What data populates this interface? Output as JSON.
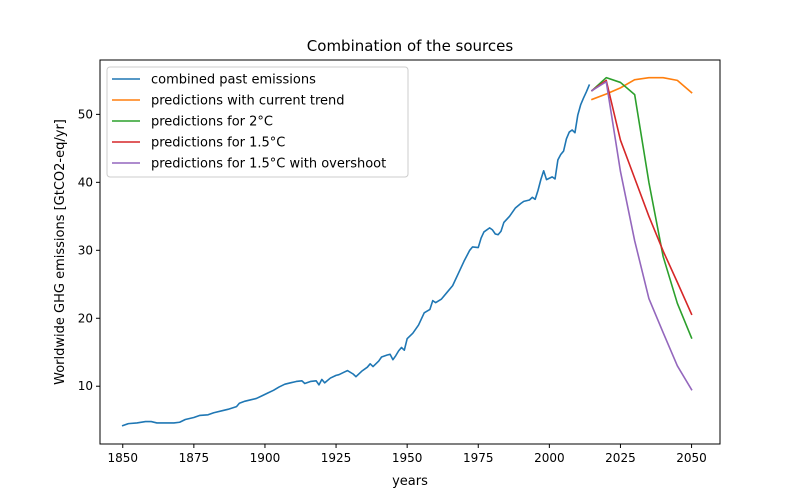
{
  "chart_data": {
    "type": "line",
    "title": "Combination of the sources",
    "xlabel": "years",
    "ylabel": "Worldwide GHG emissions [GtCO2-eq/yr]",
    "xlim": [
      1842,
      2060
    ],
    "ylim": [
      1.5,
      58
    ],
    "xticks": [
      1850,
      1875,
      1900,
      1925,
      1950,
      1975,
      2000,
      2025,
      2050
    ],
    "yticks": [
      10,
      20,
      30,
      40,
      50
    ],
    "grid": false,
    "legend_position": "top-left",
    "series": [
      {
        "name": "combined past emissions",
        "color": "#1f77b4",
        "points": [
          [
            1850,
            4.2
          ],
          [
            1852,
            4.5
          ],
          [
            1855,
            4.6
          ],
          [
            1858,
            4.8
          ],
          [
            1860,
            4.8
          ],
          [
            1862,
            4.6
          ],
          [
            1865,
            4.6
          ],
          [
            1868,
            4.6
          ],
          [
            1870,
            4.7
          ],
          [
            1872,
            5.1
          ],
          [
            1875,
            5.4
          ],
          [
            1877,
            5.7
          ],
          [
            1880,
            5.8
          ],
          [
            1882,
            6.1
          ],
          [
            1885,
            6.4
          ],
          [
            1887,
            6.6
          ],
          [
            1890,
            7.0
          ],
          [
            1891,
            7.5
          ],
          [
            1893,
            7.8
          ],
          [
            1895,
            8.0
          ],
          [
            1897,
            8.2
          ],
          [
            1899,
            8.6
          ],
          [
            1901,
            9.0
          ],
          [
            1903,
            9.4
          ],
          [
            1905,
            9.9
          ],
          [
            1907,
            10.3
          ],
          [
            1909,
            10.5
          ],
          [
            1911,
            10.7
          ],
          [
            1913,
            10.8
          ],
          [
            1914,
            10.4
          ],
          [
            1916,
            10.7
          ],
          [
            1918,
            10.8
          ],
          [
            1919,
            10.2
          ],
          [
            1920,
            11.0
          ],
          [
            1921,
            10.5
          ],
          [
            1923,
            11.2
          ],
          [
            1925,
            11.6
          ],
          [
            1926,
            11.7
          ],
          [
            1928,
            12.1
          ],
          [
            1929,
            12.3
          ],
          [
            1931,
            11.8
          ],
          [
            1932,
            11.4
          ],
          [
            1934,
            12.2
          ],
          [
            1936,
            12.8
          ],
          [
            1937,
            13.3
          ],
          [
            1938,
            12.9
          ],
          [
            1940,
            13.7
          ],
          [
            1941,
            14.3
          ],
          [
            1943,
            14.6
          ],
          [
            1944,
            14.7
          ],
          [
            1945,
            13.9
          ],
          [
            1946,
            14.5
          ],
          [
            1947,
            15.2
          ],
          [
            1948,
            15.7
          ],
          [
            1949,
            15.3
          ],
          [
            1950,
            17.0
          ],
          [
            1952,
            17.8
          ],
          [
            1954,
            19.0
          ],
          [
            1956,
            20.8
          ],
          [
            1958,
            21.3
          ],
          [
            1959,
            22.6
          ],
          [
            1960,
            22.3
          ],
          [
            1962,
            22.8
          ],
          [
            1964,
            23.8
          ],
          [
            1966,
            24.8
          ],
          [
            1968,
            26.6
          ],
          [
            1970,
            28.4
          ],
          [
            1972,
            30.0
          ],
          [
            1973,
            30.5
          ],
          [
            1975,
            30.4
          ],
          [
            1976,
            31.8
          ],
          [
            1977,
            32.7
          ],
          [
            1979,
            33.3
          ],
          [
            1980,
            33.0
          ],
          [
            1981,
            32.4
          ],
          [
            1982,
            32.3
          ],
          [
            1983,
            32.8
          ],
          [
            1984,
            34.1
          ],
          [
            1986,
            35.0
          ],
          [
            1988,
            36.2
          ],
          [
            1990,
            36.9
          ],
          [
            1991,
            37.2
          ],
          [
            1993,
            37.4
          ],
          [
            1994,
            37.8
          ],
          [
            1995,
            37.5
          ],
          [
            1996,
            38.8
          ],
          [
            1997,
            40.4
          ],
          [
            1998,
            41.7
          ],
          [
            1999,
            40.4
          ],
          [
            2000,
            40.6
          ],
          [
            2001,
            40.8
          ],
          [
            2002,
            40.5
          ],
          [
            2003,
            43.3
          ],
          [
            2004,
            44.1
          ],
          [
            2005,
            44.6
          ],
          [
            2006,
            46.4
          ],
          [
            2007,
            47.4
          ],
          [
            2008,
            47.7
          ],
          [
            2009,
            47.3
          ],
          [
            2010,
            49.9
          ],
          [
            2011,
            51.4
          ],
          [
            2012,
            52.4
          ],
          [
            2013,
            53.3
          ],
          [
            2014,
            54.3
          ]
        ]
      },
      {
        "name": "predictions with current trend",
        "color": "#ff7f0e",
        "points": [
          [
            2015,
            52.2
          ],
          [
            2020,
            53.0
          ],
          [
            2025,
            53.9
          ],
          [
            2030,
            55.1
          ],
          [
            2035,
            55.4
          ],
          [
            2040,
            55.4
          ],
          [
            2045,
            55.0
          ],
          [
            2050,
            53.2
          ]
        ]
      },
      {
        "name": "predictions for 2°C",
        "color": "#2ca02c",
        "points": [
          [
            2015,
            53.5
          ],
          [
            2020,
            55.4
          ],
          [
            2025,
            54.7
          ],
          [
            2030,
            52.9
          ],
          [
            2035,
            40.0
          ],
          [
            2040,
            29.1
          ],
          [
            2045,
            22.2
          ],
          [
            2050,
            17.1
          ]
        ]
      },
      {
        "name": "predictions for 1.5°C",
        "color": "#d62728",
        "points": [
          [
            2015,
            53.5
          ],
          [
            2020,
            55.0
          ],
          [
            2025,
            46.2
          ],
          [
            2030,
            40.6
          ],
          [
            2035,
            35.0
          ],
          [
            2040,
            29.9
          ],
          [
            2045,
            25.3
          ],
          [
            2050,
            20.6
          ]
        ]
      },
      {
        "name": "predictions for 1.5°C with overshoot",
        "color": "#9467bd",
        "points": [
          [
            2015,
            53.5
          ],
          [
            2020,
            54.8
          ],
          [
            2025,
            41.6
          ],
          [
            2030,
            31.4
          ],
          [
            2035,
            22.9
          ],
          [
            2040,
            17.9
          ],
          [
            2045,
            13.0
          ],
          [
            2050,
            9.5
          ]
        ]
      }
    ]
  }
}
